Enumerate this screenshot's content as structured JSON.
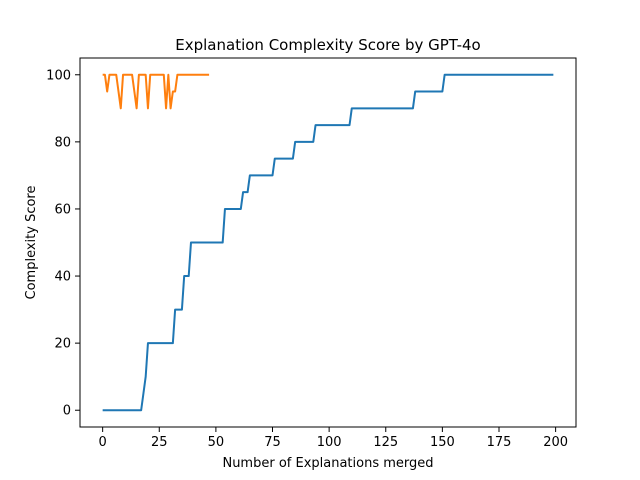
{
  "chart_data": {
    "type": "line",
    "title": "Explanation Complexity Score by GPT-4o",
    "xlabel": "Number of Explanations merged",
    "ylabel": "Complexity Score",
    "xlim": [
      -10,
      209
    ],
    "ylim": [
      -5,
      105
    ],
    "xticks": [
      0,
      25,
      50,
      75,
      100,
      125,
      150,
      175,
      200
    ],
    "yticks": [
      0,
      20,
      40,
      60,
      80,
      100
    ],
    "grid": false,
    "legend": "none",
    "series": [
      {
        "color": "#1f77b4",
        "x": [
          0,
          17,
          18,
          19,
          20,
          31,
          32,
          35,
          36,
          38,
          39,
          53,
          54,
          61,
          62,
          64,
          65,
          75,
          76,
          84,
          85,
          93,
          94,
          109,
          110,
          137,
          138,
          150,
          151,
          199
        ],
        "y": [
          0,
          0,
          5,
          10,
          20,
          20,
          30,
          30,
          40,
          40,
          50,
          50,
          60,
          60,
          65,
          65,
          70,
          70,
          75,
          75,
          80,
          80,
          85,
          85,
          90,
          90,
          95,
          95,
          100,
          100
        ]
      },
      {
        "color": "#ff7f0e",
        "x": [
          0,
          1,
          2,
          3,
          4,
          5,
          6,
          7,
          8,
          9,
          10,
          11,
          12,
          13,
          14,
          15,
          16,
          17,
          18,
          19,
          20,
          21,
          22,
          23,
          24,
          25,
          26,
          27,
          28,
          29,
          30,
          31,
          32,
          33,
          34,
          35,
          36,
          37,
          38,
          39,
          40,
          41,
          42,
          43,
          44,
          45,
          46,
          47
        ],
        "y": [
          100,
          100,
          95,
          100,
          100,
          100,
          100,
          95,
          90,
          100,
          100,
          100,
          100,
          100,
          95,
          90,
          100,
          100,
          100,
          100,
          90,
          100,
          100,
          100,
          100,
          100,
          100,
          100,
          90,
          100,
          90,
          95,
          95,
          100,
          100,
          100,
          100,
          100,
          100,
          100,
          100,
          100,
          100,
          100,
          100,
          100,
          100,
          100
        ]
      }
    ]
  }
}
